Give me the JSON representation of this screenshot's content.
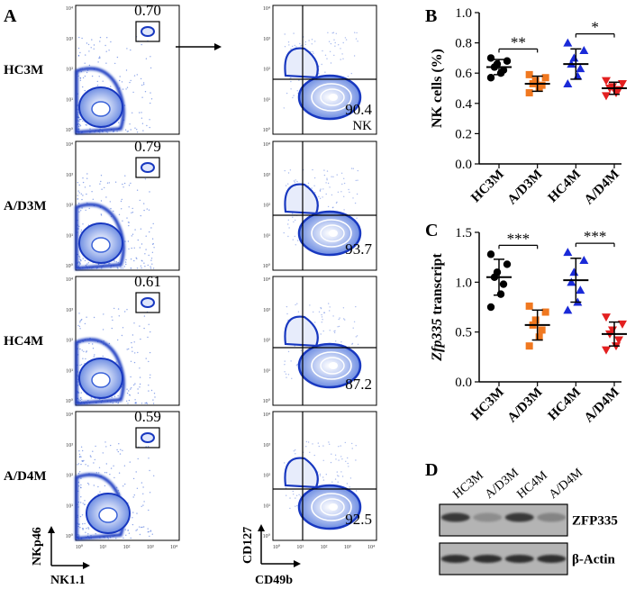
{
  "panel_labels": {
    "a": "A",
    "b": "B",
    "c": "C",
    "d": "D"
  },
  "flow": {
    "rows": [
      {
        "label": "HC3M",
        "gate_pct": "0.70",
        "nk_pct": "90.4",
        "nk_label": "NK"
      },
      {
        "label": "A/D3M",
        "gate_pct": "0.79",
        "nk_pct": "93.7"
      },
      {
        "label": "HC4M",
        "gate_pct": "0.61",
        "nk_pct": "87.2"
      },
      {
        "label": "A/D4M",
        "gate_pct": "0.59",
        "nk_pct": "92.5"
      }
    ],
    "left_axes": {
      "y": "NKp46",
      "x": "NK1.1"
    },
    "right_axes": {
      "y": "CD127",
      "x": "CD49b"
    },
    "tick_labels": [
      "10⁰",
      "10¹",
      "10²",
      "10³",
      "10⁴"
    ]
  },
  "chart_data": [
    {
      "panel": "B",
      "type": "scatter",
      "ylabel": "NK cells (%)",
      "categories": [
        "HC3M",
        "A/D3M",
        "HC4M",
        "A/D4M"
      ],
      "ylim": [
        0.0,
        1.0
      ],
      "yticks": [
        "0.0",
        "0.2",
        "0.4",
        "0.6",
        "0.8",
        "1.0"
      ],
      "series": [
        {
          "name": "HC3M",
          "color": "#000000",
          "marker": "circle",
          "mean": 0.64,
          "sd": 0.05,
          "points": [
            0.57,
            0.6,
            0.62,
            0.64,
            0.66,
            0.68,
            0.7
          ]
        },
        {
          "name": "A/D3M",
          "color": "#f07820",
          "marker": "square",
          "mean": 0.53,
          "sd": 0.05,
          "points": [
            0.47,
            0.5,
            0.52,
            0.53,
            0.55,
            0.57,
            0.59
          ]
        },
        {
          "name": "HC4M",
          "color": "#1a2ad8",
          "marker": "triangle-up",
          "mean": 0.66,
          "sd": 0.1,
          "points": [
            0.53,
            0.58,
            0.63,
            0.66,
            0.7,
            0.75,
            0.8
          ]
        },
        {
          "name": "A/D4M",
          "color": "#e32020",
          "marker": "triangle-down",
          "mean": 0.5,
          "sd": 0.04,
          "points": [
            0.45,
            0.47,
            0.49,
            0.5,
            0.51,
            0.53,
            0.55
          ]
        }
      ],
      "significance": [
        {
          "from": 0,
          "to": 1,
          "label": "**"
        },
        {
          "from": 2,
          "to": 3,
          "label": "*"
        }
      ]
    },
    {
      "panel": "C",
      "type": "scatter",
      "ylabel_italic": "Zfp335",
      "ylabel_rest": " transcript",
      "categories": [
        "HC3M",
        "A/D3M",
        "HC4M",
        "A/D4M"
      ],
      "ylim": [
        0.0,
        1.5
      ],
      "yticks": [
        "0.0",
        "0.5",
        "1.0",
        "1.5"
      ],
      "series": [
        {
          "name": "HC3M",
          "color": "#000000",
          "marker": "circle",
          "mean": 1.05,
          "sd": 0.18,
          "points": [
            0.75,
            0.88,
            0.98,
            1.05,
            1.1,
            1.18,
            1.28
          ]
        },
        {
          "name": "A/D3M",
          "color": "#f07820",
          "marker": "square",
          "mean": 0.57,
          "sd": 0.15,
          "points": [
            0.36,
            0.45,
            0.52,
            0.57,
            0.62,
            0.7,
            0.76
          ]
        },
        {
          "name": "HC4M",
          "color": "#1a2ad8",
          "marker": "triangle-up",
          "mean": 1.02,
          "sd": 0.22,
          "points": [
            0.72,
            0.8,
            0.92,
            1.0,
            1.1,
            1.22,
            1.3
          ]
        },
        {
          "name": "A/D4M",
          "color": "#e32020",
          "marker": "triangle-down",
          "mean": 0.48,
          "sd": 0.12,
          "points": [
            0.32,
            0.36,
            0.42,
            0.48,
            0.52,
            0.58,
            0.65
          ]
        }
      ],
      "significance": [
        {
          "from": 0,
          "to": 1,
          "label": "***"
        },
        {
          "from": 2,
          "to": 3,
          "label": "***"
        }
      ]
    }
  ],
  "western": {
    "lanes": [
      "HC3M",
      "A/D3M",
      "HC4M",
      "A/D4M"
    ],
    "rows": [
      {
        "label": "ZFP335",
        "intensity": [
          0.85,
          0.35,
          0.85,
          0.4
        ]
      },
      {
        "label": "β-Actin",
        "intensity": [
          0.9,
          0.9,
          0.9,
          0.9
        ]
      }
    ]
  }
}
